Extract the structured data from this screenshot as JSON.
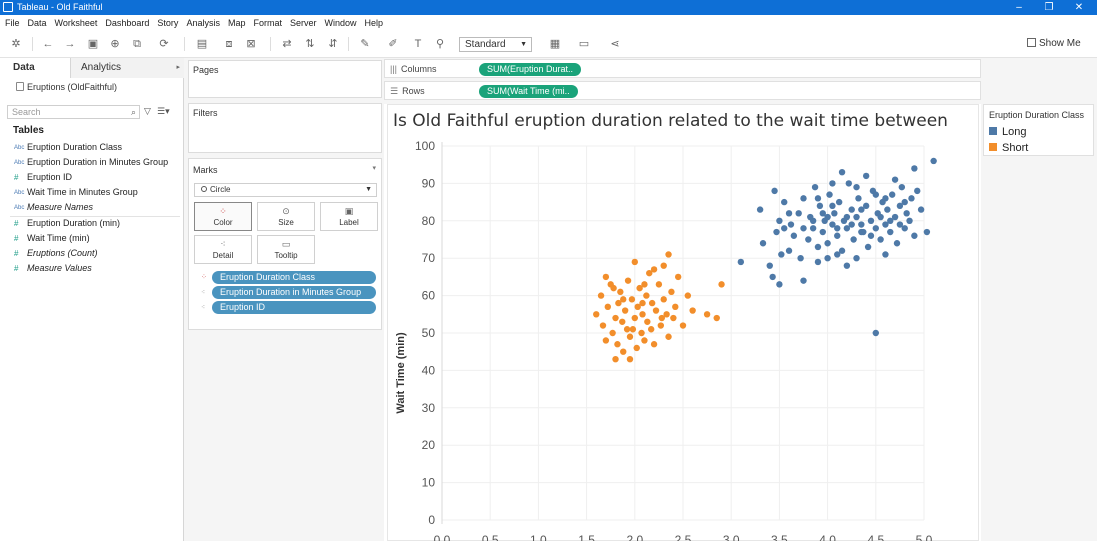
{
  "window": {
    "title": "Tableau - Old Faithful",
    "minimize": "–",
    "restore": "❐",
    "close": "✕"
  },
  "menu": [
    "File",
    "Data",
    "Worksheet",
    "Dashboard",
    "Story",
    "Analysis",
    "Map",
    "Format",
    "Server",
    "Window",
    "Help"
  ],
  "toolbar": {
    "fit_mode": "Standard",
    "show_me": "Show Me"
  },
  "data_pane": {
    "tabs": [
      "Data",
      "Analytics"
    ],
    "datasource": "Eruptions (OldFaithful)",
    "search_placeholder": "Search",
    "tables_heading": "Tables",
    "fields": [
      {
        "type": "Abc",
        "name": "Eruption Duration Class",
        "italic": false
      },
      {
        "type": "Abc",
        "name": "Eruption Duration in Minutes Group",
        "italic": false
      },
      {
        "type": "#",
        "name": "Eruption ID",
        "italic": false
      },
      {
        "type": "Abc",
        "name": "Wait Time in Minutes Group",
        "italic": false
      },
      {
        "type": "Abc",
        "name": "Measure Names",
        "italic": true
      },
      {
        "type": "#",
        "name": "Eruption Duration (min)",
        "italic": false
      },
      {
        "type": "#",
        "name": "Wait Time (min)",
        "italic": false
      },
      {
        "type": "#",
        "name": "Eruptions (Count)",
        "italic": true
      },
      {
        "type": "#",
        "name": "Measure Values",
        "italic": true
      }
    ]
  },
  "cards": {
    "pages": "Pages",
    "filters": "Filters",
    "marks": "Marks"
  },
  "marks": {
    "type": "Circle",
    "buttons": [
      "Color",
      "Size",
      "Label",
      "Detail",
      "Tooltip"
    ],
    "pills": [
      "Eruption Duration Class",
      "Eruption Duration in Minutes Group",
      "Eruption ID"
    ]
  },
  "shelves": {
    "columns_label": "Columns",
    "columns_pill": "SUM(Eruption Durat..",
    "rows_label": "Rows",
    "rows_pill": "SUM(Wait Time (mi.."
  },
  "legend": {
    "title": "Eruption Duration Class",
    "items": [
      {
        "label": "Long",
        "color": "#4e79a7"
      },
      {
        "label": "Short",
        "color": "#f28e2b"
      }
    ]
  },
  "chart_data": {
    "type": "scatter",
    "title": "Is Old Faithful eruption duration related to the wait time between",
    "ylabel": "Wait Time (min)",
    "xlabel": "",
    "ylim": [
      0,
      100
    ],
    "xlim": [
      0.0,
      5.0
    ],
    "yticks": [
      0,
      10,
      20,
      30,
      40,
      50,
      60,
      70,
      80,
      90,
      100
    ],
    "xticks": [
      "0.0",
      "0.5",
      "1.0",
      "1.5",
      "2.0",
      "2.5",
      "3.0",
      "3.5",
      "4.0",
      "4.5",
      "5.0"
    ],
    "grid": true,
    "series": [
      {
        "name": "Long",
        "color": "#4e79a7",
        "points": [
          [
            3.1,
            69
          ],
          [
            3.3,
            83
          ],
          [
            3.33,
            74
          ],
          [
            3.4,
            68
          ],
          [
            3.43,
            65
          ],
          [
            3.45,
            88
          ],
          [
            3.47,
            77
          ],
          [
            3.5,
            80
          ],
          [
            3.52,
            71
          ],
          [
            3.55,
            85
          ],
          [
            3.6,
            72
          ],
          [
            3.62,
            79
          ],
          [
            3.65,
            76
          ],
          [
            3.7,
            82
          ],
          [
            3.72,
            70
          ],
          [
            3.75,
            86
          ],
          [
            3.8,
            75
          ],
          [
            3.82,
            81
          ],
          [
            3.85,
            78
          ],
          [
            3.87,
            89
          ],
          [
            3.9,
            73
          ],
          [
            3.92,
            84
          ],
          [
            3.95,
            77
          ],
          [
            3.97,
            80
          ],
          [
            4.0,
            74
          ],
          [
            4.02,
            87
          ],
          [
            4.05,
            79
          ],
          [
            4.07,
            82
          ],
          [
            4.1,
            76
          ],
          [
            4.12,
            85
          ],
          [
            4.15,
            72
          ],
          [
            4.17,
            80
          ],
          [
            4.2,
            78
          ],
          [
            4.22,
            90
          ],
          [
            4.25,
            83
          ],
          [
            4.27,
            75
          ],
          [
            4.3,
            81
          ],
          [
            4.32,
            86
          ],
          [
            4.35,
            79
          ],
          [
            4.37,
            77
          ],
          [
            4.4,
            84
          ],
          [
            4.42,
            73
          ],
          [
            4.45,
            80
          ],
          [
            4.47,
            88
          ],
          [
            4.5,
            78
          ],
          [
            4.52,
            82
          ],
          [
            4.55,
            75
          ],
          [
            4.57,
            85
          ],
          [
            4.6,
            79
          ],
          [
            4.62,
            83
          ],
          [
            4.65,
            77
          ],
          [
            4.67,
            87
          ],
          [
            4.7,
            81
          ],
          [
            4.72,
            74
          ],
          [
            4.75,
            84
          ],
          [
            4.77,
            89
          ],
          [
            4.8,
            78
          ],
          [
            4.82,
            82
          ],
          [
            4.85,
            80
          ],
          [
            4.87,
            86
          ],
          [
            4.9,
            76
          ],
          [
            4.93,
            88
          ],
          [
            4.97,
            83
          ],
          [
            5.03,
            77
          ],
          [
            5.1,
            96
          ],
          [
            4.9,
            94
          ],
          [
            4.5,
            50
          ],
          [
            3.75,
            64
          ],
          [
            3.5,
            63
          ],
          [
            4.0,
            70
          ],
          [
            4.1,
            71
          ],
          [
            4.3,
            70
          ],
          [
            4.6,
            71
          ],
          [
            4.2,
            68
          ],
          [
            3.9,
            69
          ],
          [
            4.15,
            93
          ],
          [
            4.4,
            92
          ],
          [
            4.7,
            91
          ],
          [
            4.05,
            90
          ],
          [
            4.3,
            89
          ],
          [
            3.6,
            82
          ],
          [
            3.75,
            78
          ],
          [
            3.9,
            86
          ],
          [
            4.05,
            84
          ],
          [
            4.2,
            81
          ],
          [
            4.35,
            83
          ],
          [
            4.5,
            87
          ],
          [
            4.65,
            80
          ],
          [
            4.8,
            85
          ],
          [
            3.55,
            78
          ],
          [
            3.95,
            82
          ],
          [
            4.25,
            79
          ],
          [
            4.55,
            81
          ],
          [
            4.45,
            76
          ],
          [
            4.1,
            78
          ],
          [
            3.85,
            80
          ],
          [
            4.6,
            86
          ],
          [
            4.75,
            79
          ],
          [
            4.35,
            77
          ],
          [
            4.0,
            81
          ]
        ]
      },
      {
        "name": "Short",
        "color": "#f28e2b",
        "points": [
          [
            1.6,
            55
          ],
          [
            1.65,
            60
          ],
          [
            1.67,
            52
          ],
          [
            1.7,
            48
          ],
          [
            1.72,
            57
          ],
          [
            1.75,
            63
          ],
          [
            1.77,
            50
          ],
          [
            1.8,
            54
          ],
          [
            1.82,
            47
          ],
          [
            1.83,
            58
          ],
          [
            1.85,
            61
          ],
          [
            1.87,
            53
          ],
          [
            1.88,
            45
          ],
          [
            1.9,
            56
          ],
          [
            1.92,
            51
          ],
          [
            1.93,
            64
          ],
          [
            1.95,
            49
          ],
          [
            1.97,
            59
          ],
          [
            2.0,
            54
          ],
          [
            2.02,
            46
          ],
          [
            2.03,
            57
          ],
          [
            2.05,
            62
          ],
          [
            2.07,
            50
          ],
          [
            2.08,
            55
          ],
          [
            2.1,
            48
          ],
          [
            2.12,
            60
          ],
          [
            2.13,
            53
          ],
          [
            2.15,
            66
          ],
          [
            2.17,
            51
          ],
          [
            2.18,
            58
          ],
          [
            2.2,
            47
          ],
          [
            2.22,
            56
          ],
          [
            2.25,
            63
          ],
          [
            2.27,
            52
          ],
          [
            2.3,
            59
          ],
          [
            2.33,
            55
          ],
          [
            2.35,
            49
          ],
          [
            2.38,
            61
          ],
          [
            2.4,
            54
          ],
          [
            2.42,
            57
          ],
          [
            2.45,
            65
          ],
          [
            2.5,
            52
          ],
          [
            2.55,
            60
          ],
          [
            2.6,
            56
          ],
          [
            2.75,
            55
          ],
          [
            2.85,
            54
          ],
          [
            2.9,
            63
          ],
          [
            2.35,
            71
          ],
          [
            2.2,
            67
          ],
          [
            1.95,
            43
          ],
          [
            1.7,
            65
          ],
          [
            1.8,
            43
          ],
          [
            2.0,
            69
          ],
          [
            2.1,
            63
          ],
          [
            2.3,
            68
          ],
          [
            1.78,
            62
          ],
          [
            1.88,
            59
          ],
          [
            1.98,
            51
          ],
          [
            2.08,
            58
          ],
          [
            2.28,
            54
          ]
        ]
      }
    ]
  }
}
